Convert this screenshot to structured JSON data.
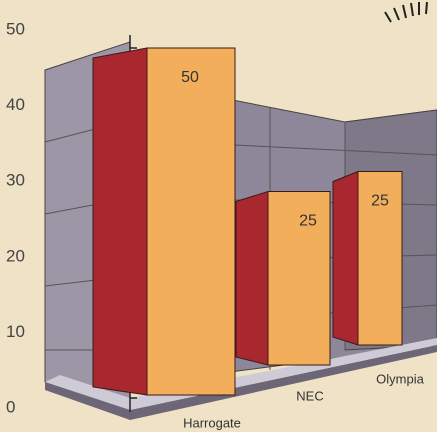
{
  "chart_data": {
    "type": "bar3d",
    "categories": [
      "Harrogate",
      "NEC",
      "Olympia"
    ],
    "values": [
      50,
      25,
      25
    ],
    "ylim": [
      0,
      50
    ],
    "yticks": [
      0,
      10,
      20,
      30,
      40,
      50
    ],
    "front_color": "#f3ae5c",
    "side_color": "#a9282f"
  }
}
